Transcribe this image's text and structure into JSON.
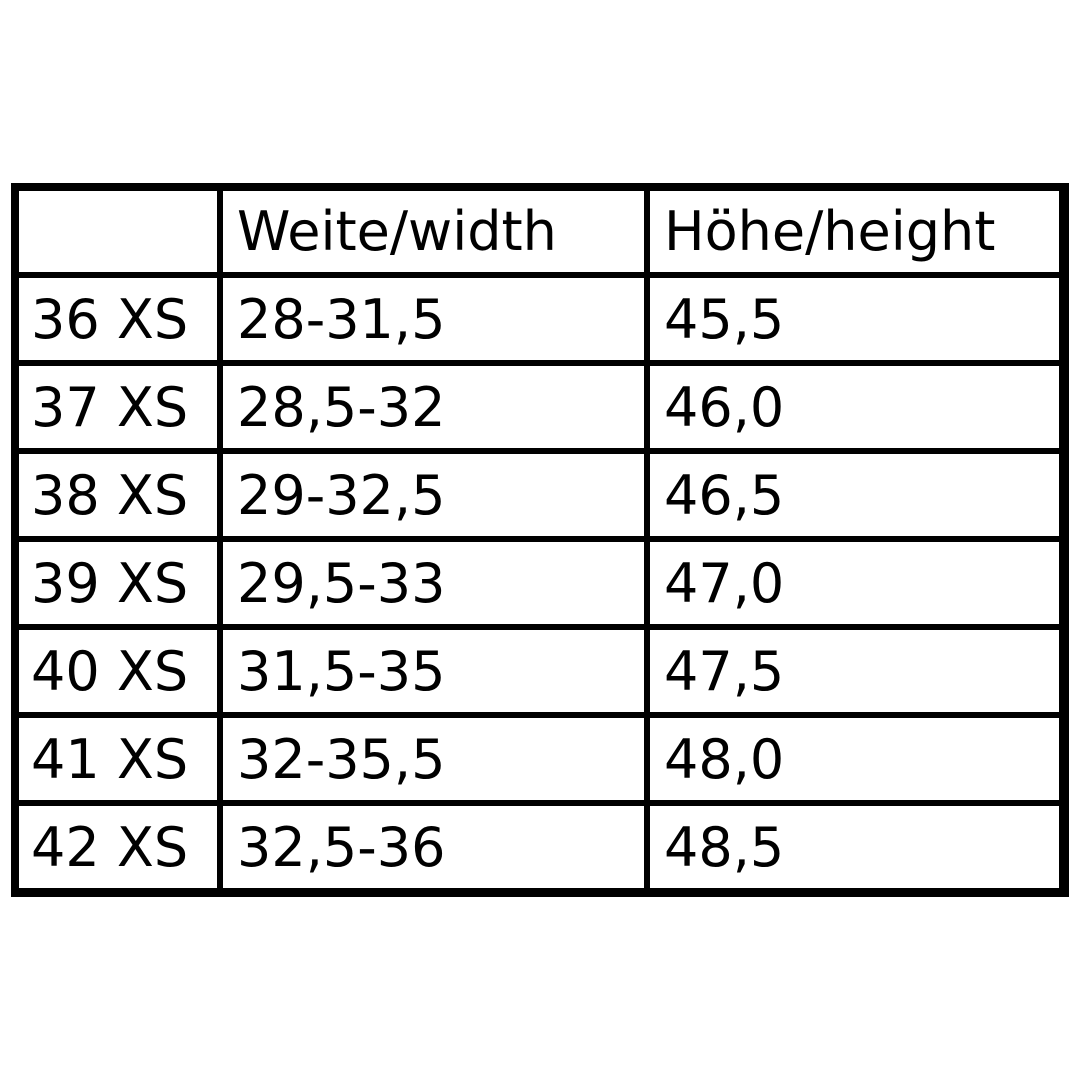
{
  "table": {
    "headers": [
      "",
      "Weite/width",
      "Höhe/height"
    ],
    "rows": [
      [
        "36 XS",
        "28-31,5",
        "45,5"
      ],
      [
        "37 XS",
        "28,5-32",
        "46,0"
      ],
      [
        "38 XS",
        "29-32,5",
        "46,5"
      ],
      [
        "39 XS",
        "29,5-33",
        "47,0"
      ],
      [
        "40 XS",
        "31,5-35",
        "47,5"
      ],
      [
        "41 XS",
        "32-35,5",
        "48,0"
      ],
      [
        "42 XS",
        "32,5-36",
        "48,5"
      ]
    ]
  }
}
